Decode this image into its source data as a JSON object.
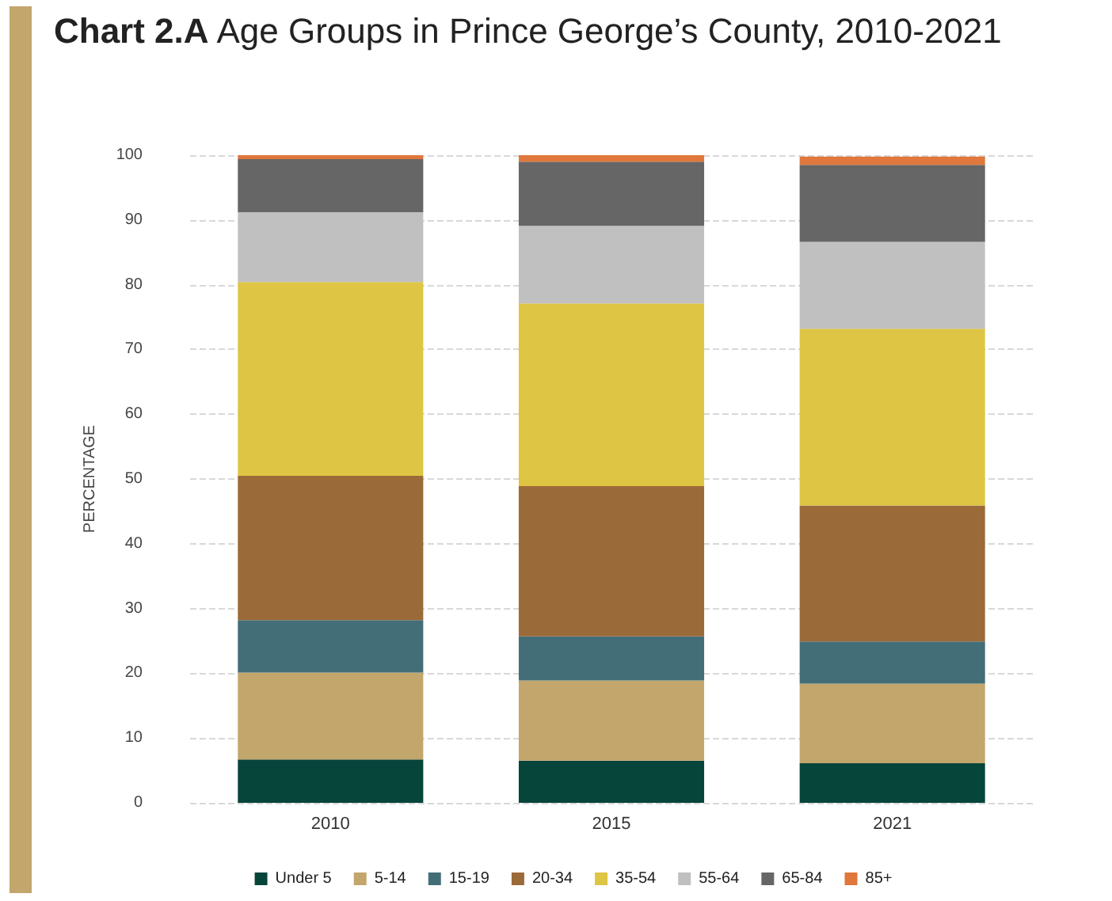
{
  "chart_data": {
    "type": "bar",
    "stacked": true,
    "title": "Chart 2.A Age Groups in Prince George’s County, 2010-2021",
    "ylabel": "PERCENTAGE",
    "categories": [
      "2010",
      "2015",
      "2021"
    ],
    "series": [
      {
        "name": "Under 5",
        "color": "#06453a",
        "values": [
          6.7,
          6.5,
          6.1
        ]
      },
      {
        "name": "5-14",
        "color": "#c2a66b",
        "values": [
          13.4,
          12.4,
          12.3
        ]
      },
      {
        "name": "15-19",
        "color": "#436e77",
        "values": [
          8.1,
          6.8,
          6.5
        ]
      },
      {
        "name": "20-34",
        "color": "#9b6a39",
        "values": [
          22.3,
          23.2,
          21.0
        ]
      },
      {
        "name": "35-54",
        "color": "#dec544",
        "values": [
          29.9,
          28.2,
          27.3
        ]
      },
      {
        "name": "55-64",
        "color": "#c0c0c0",
        "values": [
          10.8,
          12.0,
          13.4
        ]
      },
      {
        "name": "65-84",
        "color": "#656665",
        "values": [
          8.2,
          9.9,
          11.9
        ]
      },
      {
        "name": "85+",
        "color": "#e0773c",
        "values": [
          0.6,
          1.0,
          1.3
        ]
      }
    ],
    "ylim": [
      0,
      100
    ],
    "yticks": [
      0,
      10,
      20,
      30,
      40,
      50,
      60,
      70,
      80,
      90,
      100
    ],
    "grid": "y",
    "legend": "bottom"
  }
}
